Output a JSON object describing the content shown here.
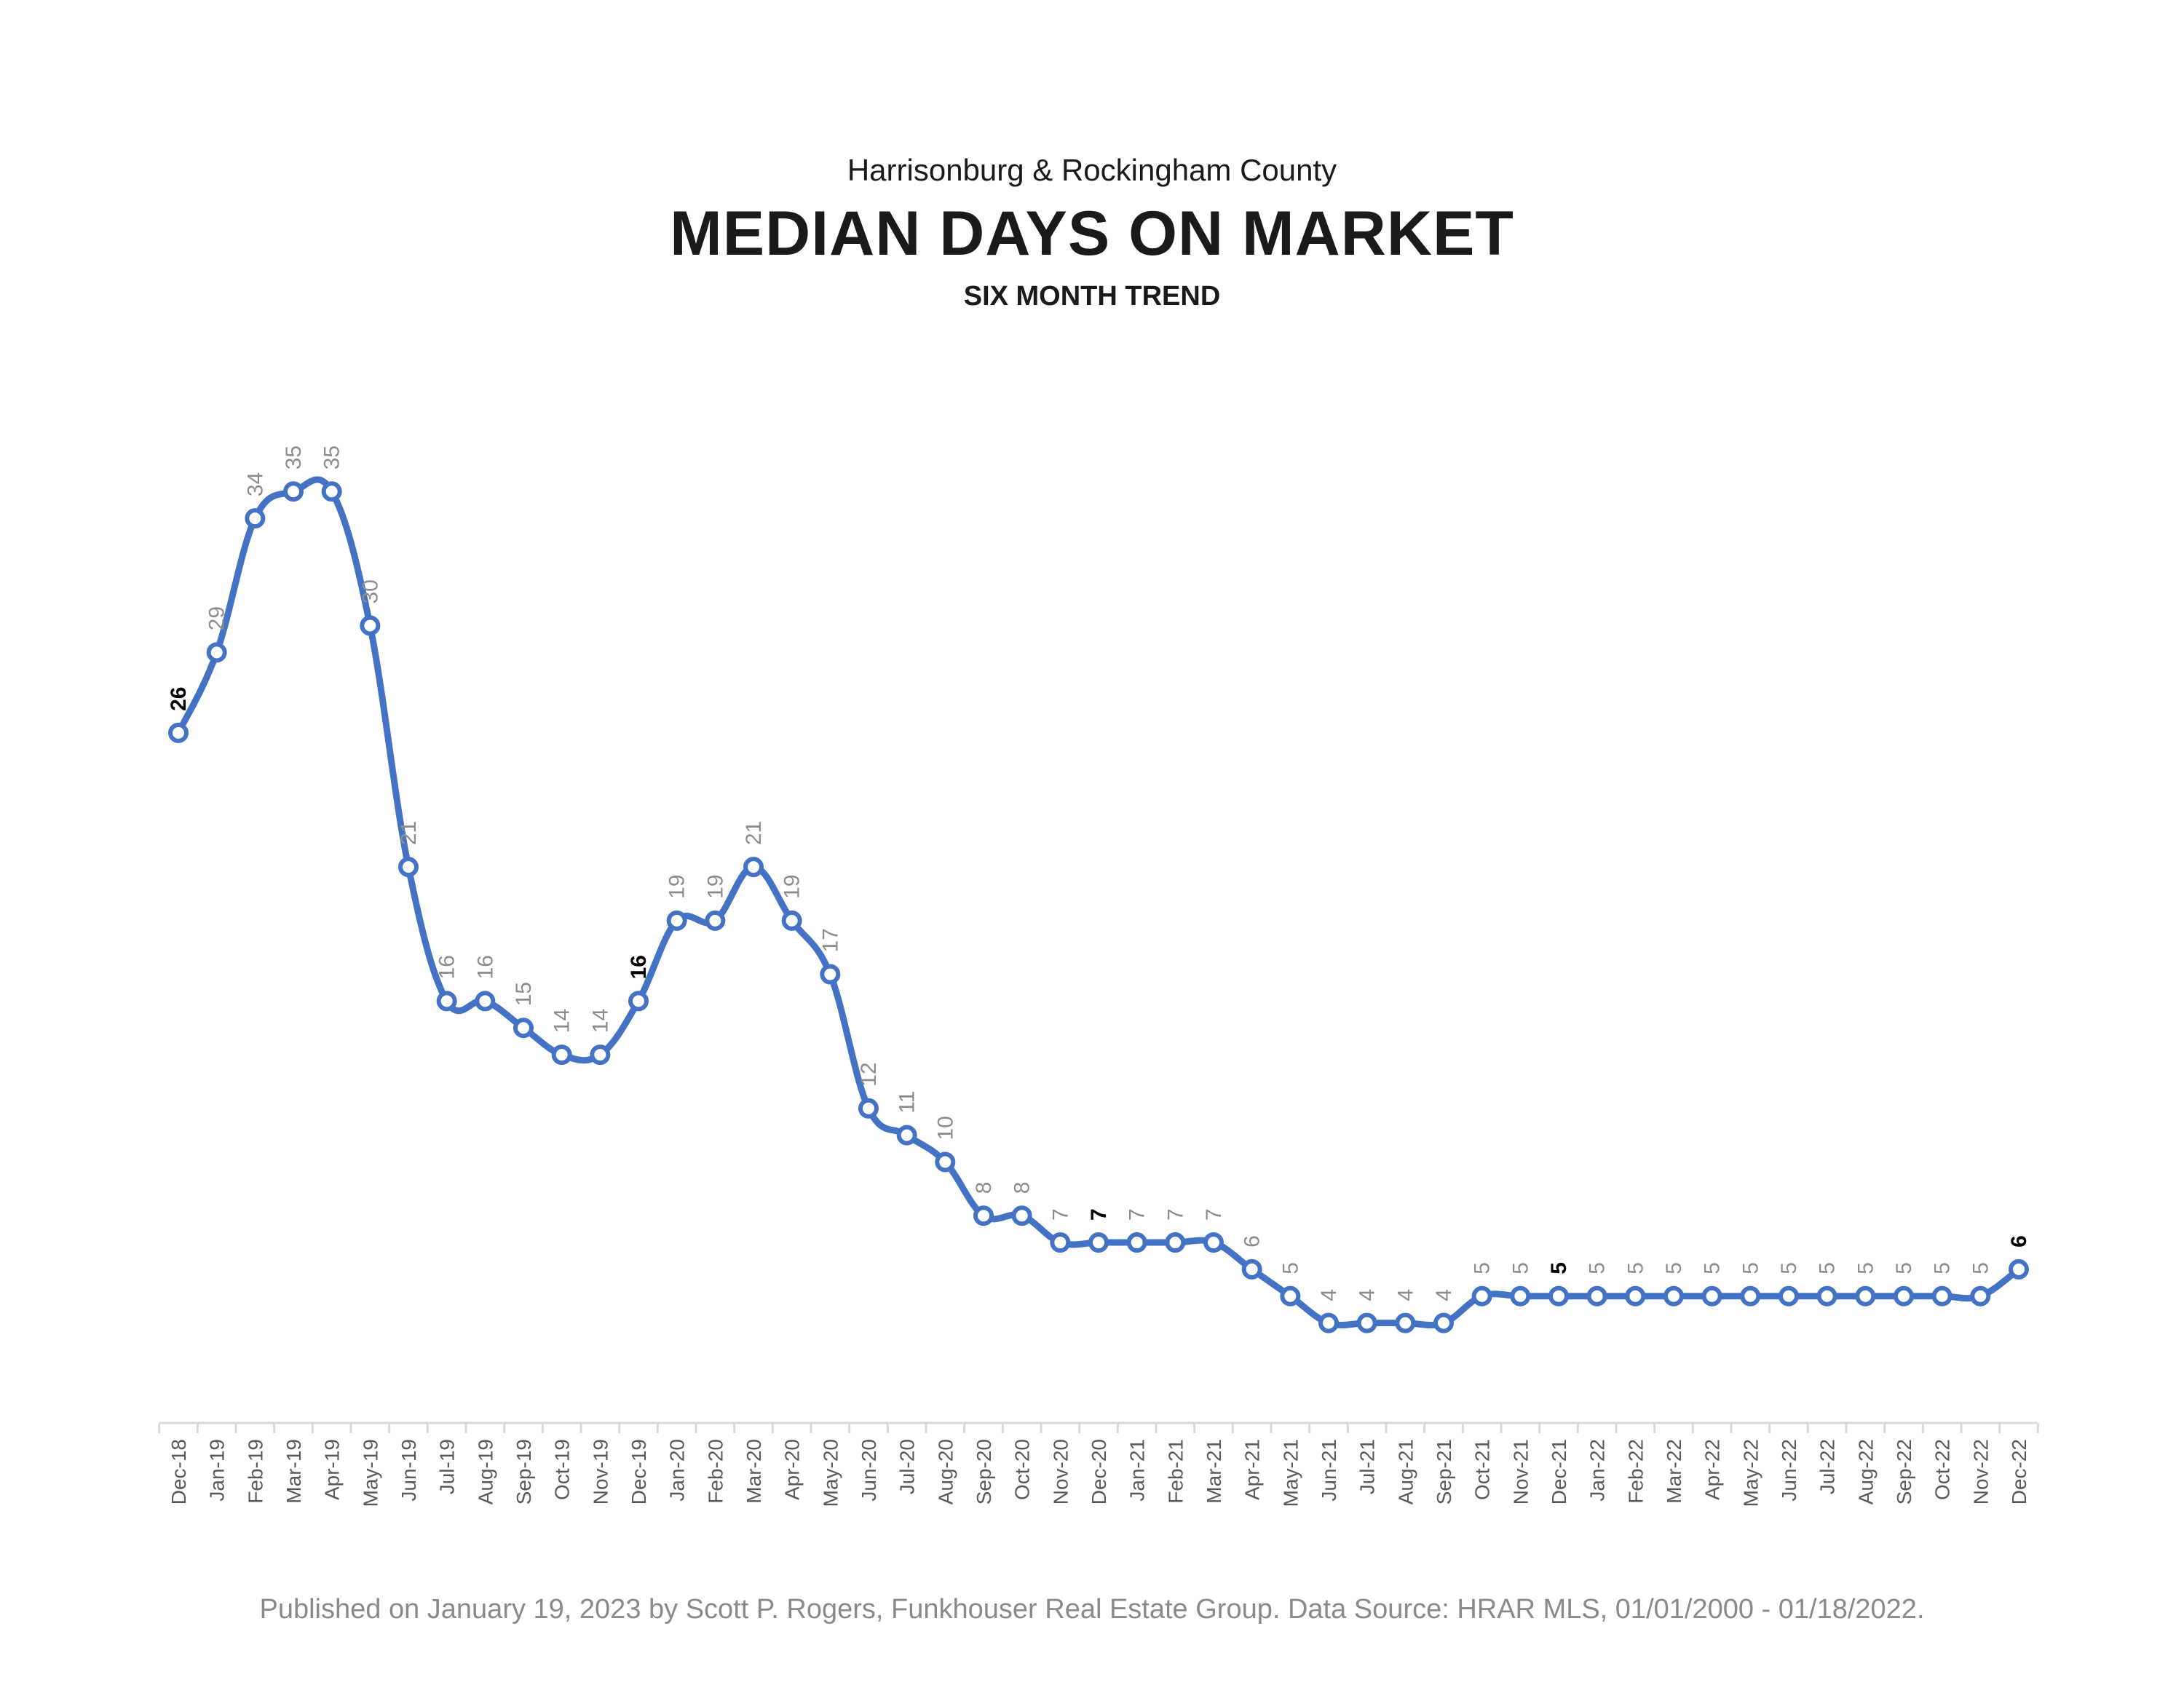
{
  "header": {
    "subtitle_top": "Harrisonburg & Rockingham County",
    "title": "MEDIAN DAYS ON MARKET",
    "subtitle_bottom": "SIX MONTH TREND"
  },
  "footer": {
    "text": "Published on January 19, 2023 by Scott P. Rogers, Funkhouser Real Estate Group. Data Source: HRAR MLS, 01/01/2000 - 01/18/2022."
  },
  "colors": {
    "line": "#4472C4",
    "label": "#8c8c8c",
    "label_highlight": "#000000",
    "axis": "#d9d9d9"
  },
  "chart_data": {
    "type": "line",
    "title": "MEDIAN DAYS ON MARKET",
    "subtitle": "SIX MONTH TREND",
    "categories": [
      "Dec-18",
      "Jan-19",
      "Feb-19",
      "Mar-19",
      "Apr-19",
      "May-19",
      "Jun-19",
      "Jul-19",
      "Aug-19",
      "Sep-19",
      "Oct-19",
      "Nov-19",
      "Dec-19",
      "Jan-20",
      "Feb-20",
      "Mar-20",
      "Apr-20",
      "May-20",
      "Jun-20",
      "Jul-20",
      "Aug-20",
      "Sep-20",
      "Oct-20",
      "Nov-20",
      "Dec-20",
      "Jan-21",
      "Feb-21",
      "Mar-21",
      "Apr-21",
      "May-21",
      "Jun-21",
      "Jul-21",
      "Aug-21",
      "Sep-21",
      "Oct-21",
      "Nov-21",
      "Dec-21",
      "Jan-22",
      "Feb-22",
      "Mar-22",
      "Apr-22",
      "May-22",
      "Jun-22",
      "Jul-22",
      "Aug-22",
      "Sep-22",
      "Oct-22",
      "Nov-22",
      "Dec-22"
    ],
    "values": [
      26,
      29,
      34,
      35,
      35,
      30,
      21,
      16,
      16,
      15,
      14,
      14,
      16,
      19,
      19,
      21,
      19,
      17,
      12,
      11,
      10,
      8,
      8,
      7,
      7,
      7,
      7,
      7,
      6,
      5,
      4,
      4,
      4,
      4,
      5,
      5,
      5,
      5,
      5,
      5,
      5,
      5,
      5,
      5,
      5,
      5,
      5,
      5,
      6
    ],
    "highlighted": [
      "Dec-18",
      "Dec-19",
      "Dec-20",
      "Dec-21",
      "Dec-22"
    ],
    "ylim": [
      0,
      36
    ],
    "grid": false,
    "legend": "none",
    "xlabel": "",
    "ylabel": ""
  }
}
